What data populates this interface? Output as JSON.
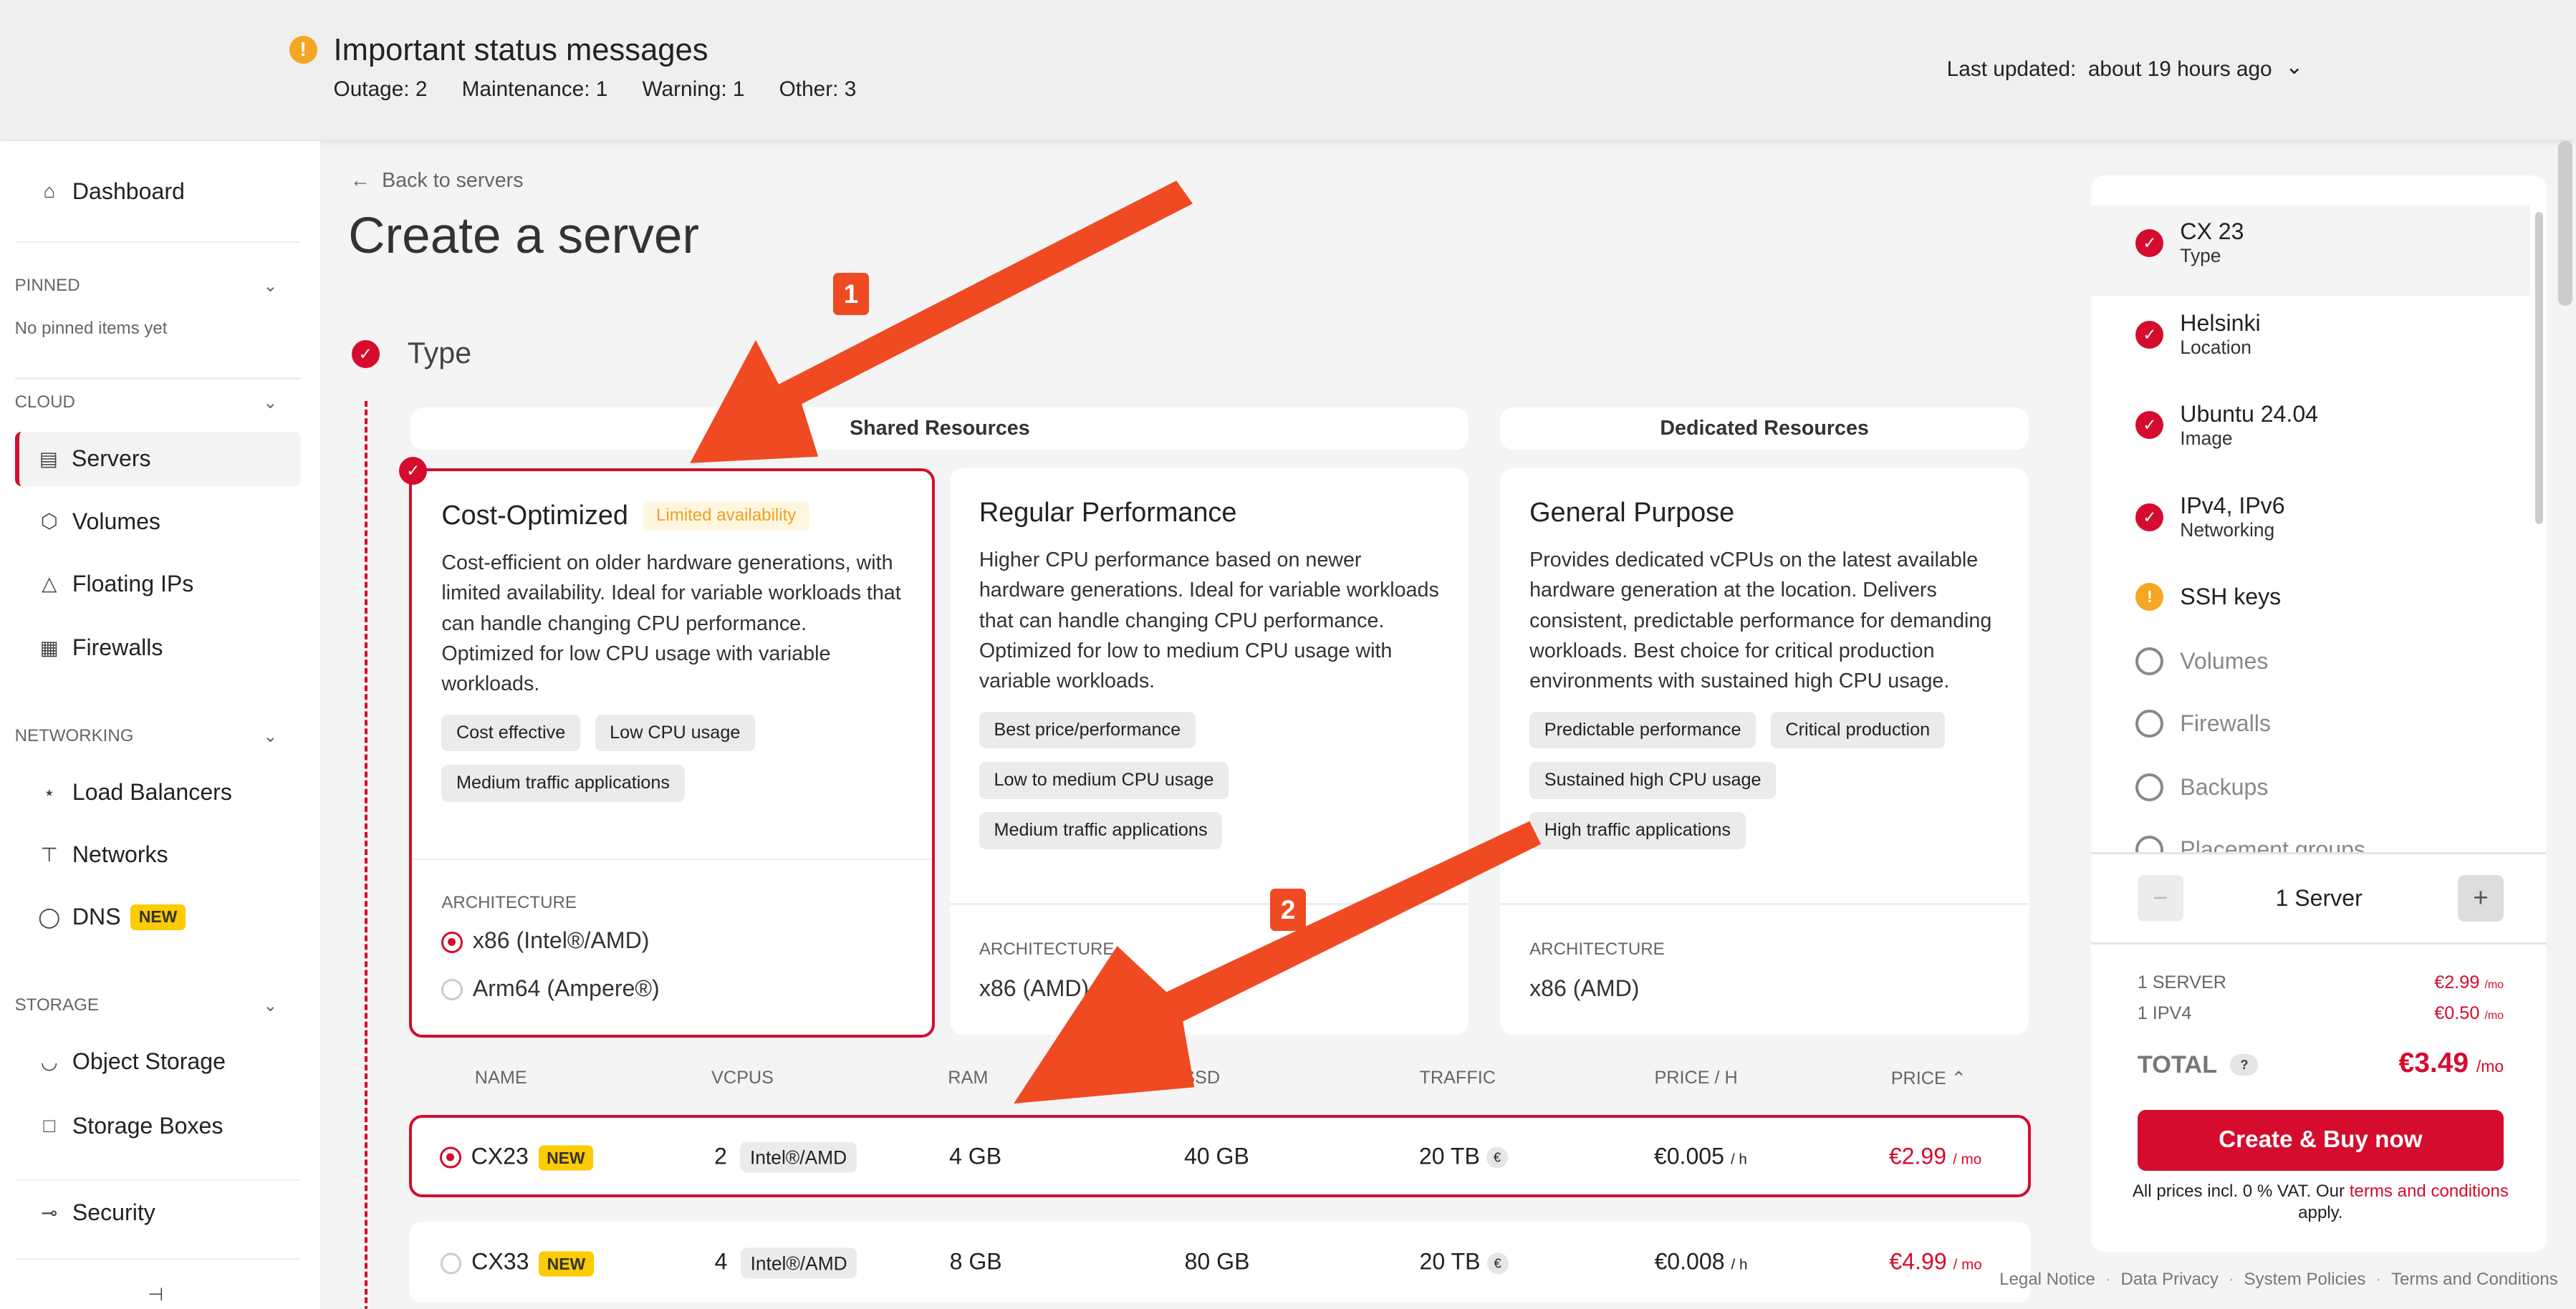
{
  "header": {
    "title": "Important status messages",
    "counts": [
      "Outage: 2",
      "Maintenance: 1",
      "Warning: 1",
      "Other: 3"
    ],
    "last_updated_label": "Last updated:",
    "last_updated_value": "about 19 hours ago"
  },
  "sidebar": {
    "dashboard": "Dashboard",
    "pinned": "PINNED",
    "no_pinned": "No pinned items yet",
    "cloud": "CLOUD",
    "servers": "Servers",
    "volumes": "Volumes",
    "floating_ips": "Floating IPs",
    "firewalls": "Firewalls",
    "networking": "NETWORKING",
    "load_balancers": "Load Balancers",
    "networks": "Networks",
    "dns": "DNS",
    "dns_badge": "NEW",
    "storage": "STORAGE",
    "object_storage": "Object Storage",
    "storage_boxes": "Storage Boxes",
    "security": "Security"
  },
  "main": {
    "back": "Back to servers",
    "title": "Create a server",
    "step": "Type",
    "shared": "Shared Resources",
    "dedicated": "Dedicated Resources",
    "cards": [
      {
        "title": "Cost-Optimized",
        "badge": "Limited availability",
        "desc": "Cost-efficient on older hardware generations, with limited availability. Ideal for variable workloads that can handle changing CPU performance. Optimized for low CPU usage with variable workloads.",
        "tags": [
          "Cost effective",
          "Low CPU usage",
          "Medium traffic applications"
        ],
        "arch_label": "ARCHITECTURE",
        "arch_options": [
          "x86 (Intel®/AMD)",
          "Arm64 (Ampere®)"
        ],
        "selected": true
      },
      {
        "title": "Regular Performance",
        "desc": "Higher CPU performance based on newer hardware generations. Ideal for variable workloads that can handle changing CPU performance. Optimized for low to medium CPU usage with variable workloads.",
        "tags": [
          "Best price/performance",
          "Low to medium CPU usage",
          "Medium traffic applications"
        ],
        "arch_label": "ARCHITECTURE",
        "arch_value": "x86 (AMD)"
      },
      {
        "title": "General Purpose",
        "desc": "Provides dedicated vCPUs on the latest available hardware generation at the location. Delivers consistent, predictable performance for demanding workloads. Best choice for critical production environments with sustained high CPU usage.",
        "tags": [
          "Predictable performance",
          "Critical production",
          "Sustained high CPU usage",
          "High traffic applications"
        ],
        "arch_label": "ARCHITECTURE",
        "arch_value": "x86 (AMD)"
      }
    ],
    "table": {
      "headers": [
        "NAME",
        "VCPUS",
        "RAM",
        "SSD",
        "TRAFFIC",
        "PRICE / H",
        "PRICE"
      ],
      "rows": [
        {
          "name": "CX23",
          "badge": "NEW",
          "vcpus": "2",
          "cpu": "Intel®/AMD",
          "ram": "4 GB",
          "ssd": "40 GB",
          "traffic": "20 TB",
          "price_h": "€0.005",
          "price_h_unit": "/ h",
          "price": "€2.99",
          "price_unit": "/ mo",
          "selected": true
        },
        {
          "name": "CX33",
          "badge": "NEW",
          "vcpus": "4",
          "cpu": "Intel®/AMD",
          "ram": "8 GB",
          "ssd": "80 GB",
          "traffic": "20 TB",
          "price_h": "€0.008",
          "price_h_unit": "/ h",
          "price": "€4.99",
          "price_unit": "/ mo",
          "selected": false
        }
      ]
    }
  },
  "summary": {
    "steps": [
      {
        "title": "CX 23",
        "sub": "Type",
        "status": "done"
      },
      {
        "title": "Helsinki",
        "sub": "Location",
        "status": "done"
      },
      {
        "title": "Ubuntu 24.04",
        "sub": "Image",
        "status": "done"
      },
      {
        "title": "IPv4, IPv6",
        "sub": "Networking",
        "status": "done"
      },
      {
        "title": "SSH keys",
        "status": "warning"
      },
      {
        "title": "Volumes",
        "status": "empty"
      },
      {
        "title": "Firewalls",
        "status": "empty"
      },
      {
        "title": "Backups",
        "status": "empty"
      },
      {
        "title": "Placement groups",
        "status": "empty"
      }
    ],
    "count": "1 Server",
    "lines": [
      {
        "label": "1 SERVER",
        "value": "€2.99",
        "unit": "/mo"
      },
      {
        "label": "1 IPV4",
        "value": "€0.50",
        "unit": "/mo"
      }
    ],
    "total_label": "TOTAL",
    "total_value": "€3.49",
    "total_unit": "/mo",
    "buy": "Create & Buy now",
    "vat": "All prices incl. 0 % VAT. Our ",
    "terms": "terms and conditions",
    "apply": " apply."
  },
  "footer": [
    "Legal Notice",
    "Data Privacy",
    "System Policies",
    "Terms and Conditions"
  ],
  "annotations": [
    "1",
    "2"
  ],
  "colors": {
    "accent": "#d50c2d",
    "warning": "#f5a623",
    "annotation": "#f04a23",
    "new_badge": "#fccb00"
  }
}
